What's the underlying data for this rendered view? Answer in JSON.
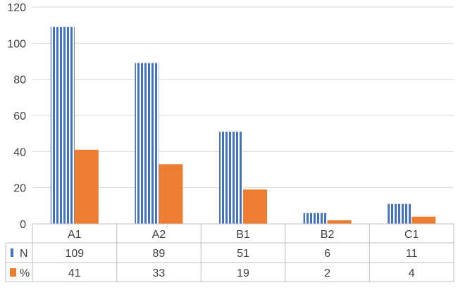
{
  "chart_data": {
    "type": "bar",
    "categories": [
      "A1",
      "A2",
      "B1",
      "B2",
      "C1"
    ],
    "series": [
      {
        "name": "N",
        "values": [
          109,
          89,
          51,
          6,
          11
        ],
        "color": "#4472C4",
        "pattern": "vertical-stripes"
      },
      {
        "name": "%",
        "values": [
          41,
          33,
          19,
          2,
          4
        ],
        "color": "#ED7D31",
        "pattern": "solid"
      }
    ],
    "y_ticks": [
      "0",
      "20",
      "40",
      "60",
      "80",
      "100",
      "120"
    ],
    "ylim": [
      0,
      120
    ],
    "grid": true,
    "legend": "data-table-left",
    "data_table": true,
    "title": "",
    "xlabel": "",
    "ylabel": ""
  }
}
